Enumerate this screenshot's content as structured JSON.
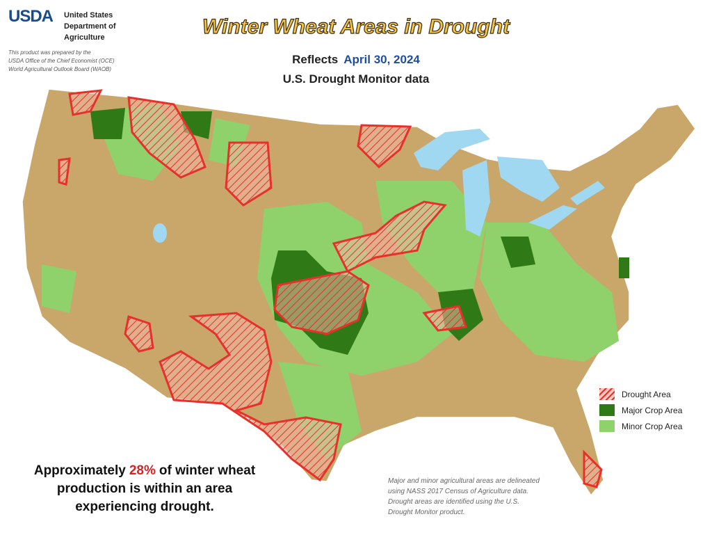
{
  "header": {
    "agency": "USDA",
    "department": [
      "United States",
      "Department of",
      "Agriculture"
    ],
    "credit": [
      "This product was prepared by the",
      "USDA Office of the Chief Economist (OCE)",
      "World Agricultural Outlook Board (WAOB)"
    ],
    "title": "Winter Wheat Areas in Drought",
    "reflects": "Reflects",
    "date": "April 30, 2024",
    "subtitle": "U.S. Drought Monitor data"
  },
  "legend": [
    {
      "label": "Drought Area",
      "color": "#e8302a"
    },
    {
      "label": "Major Crop Area",
      "color": "#2f7a16"
    },
    {
      "label": "Minor Crop Area",
      "color": "#8fd16a"
    }
  ],
  "statement": {
    "lines": [
      [
        "Approximately",
        "28%",
        "of winter wheat"
      ],
      [
        "production is within an area"
      ],
      [
        "experiencing drought."
      ]
    ]
  },
  "note": "Major and minor agricultural areas are delineated using NASS 2017 Census of Agriculture data.  Drought areas are identified using the U.S. Drought Monitor product."
}
